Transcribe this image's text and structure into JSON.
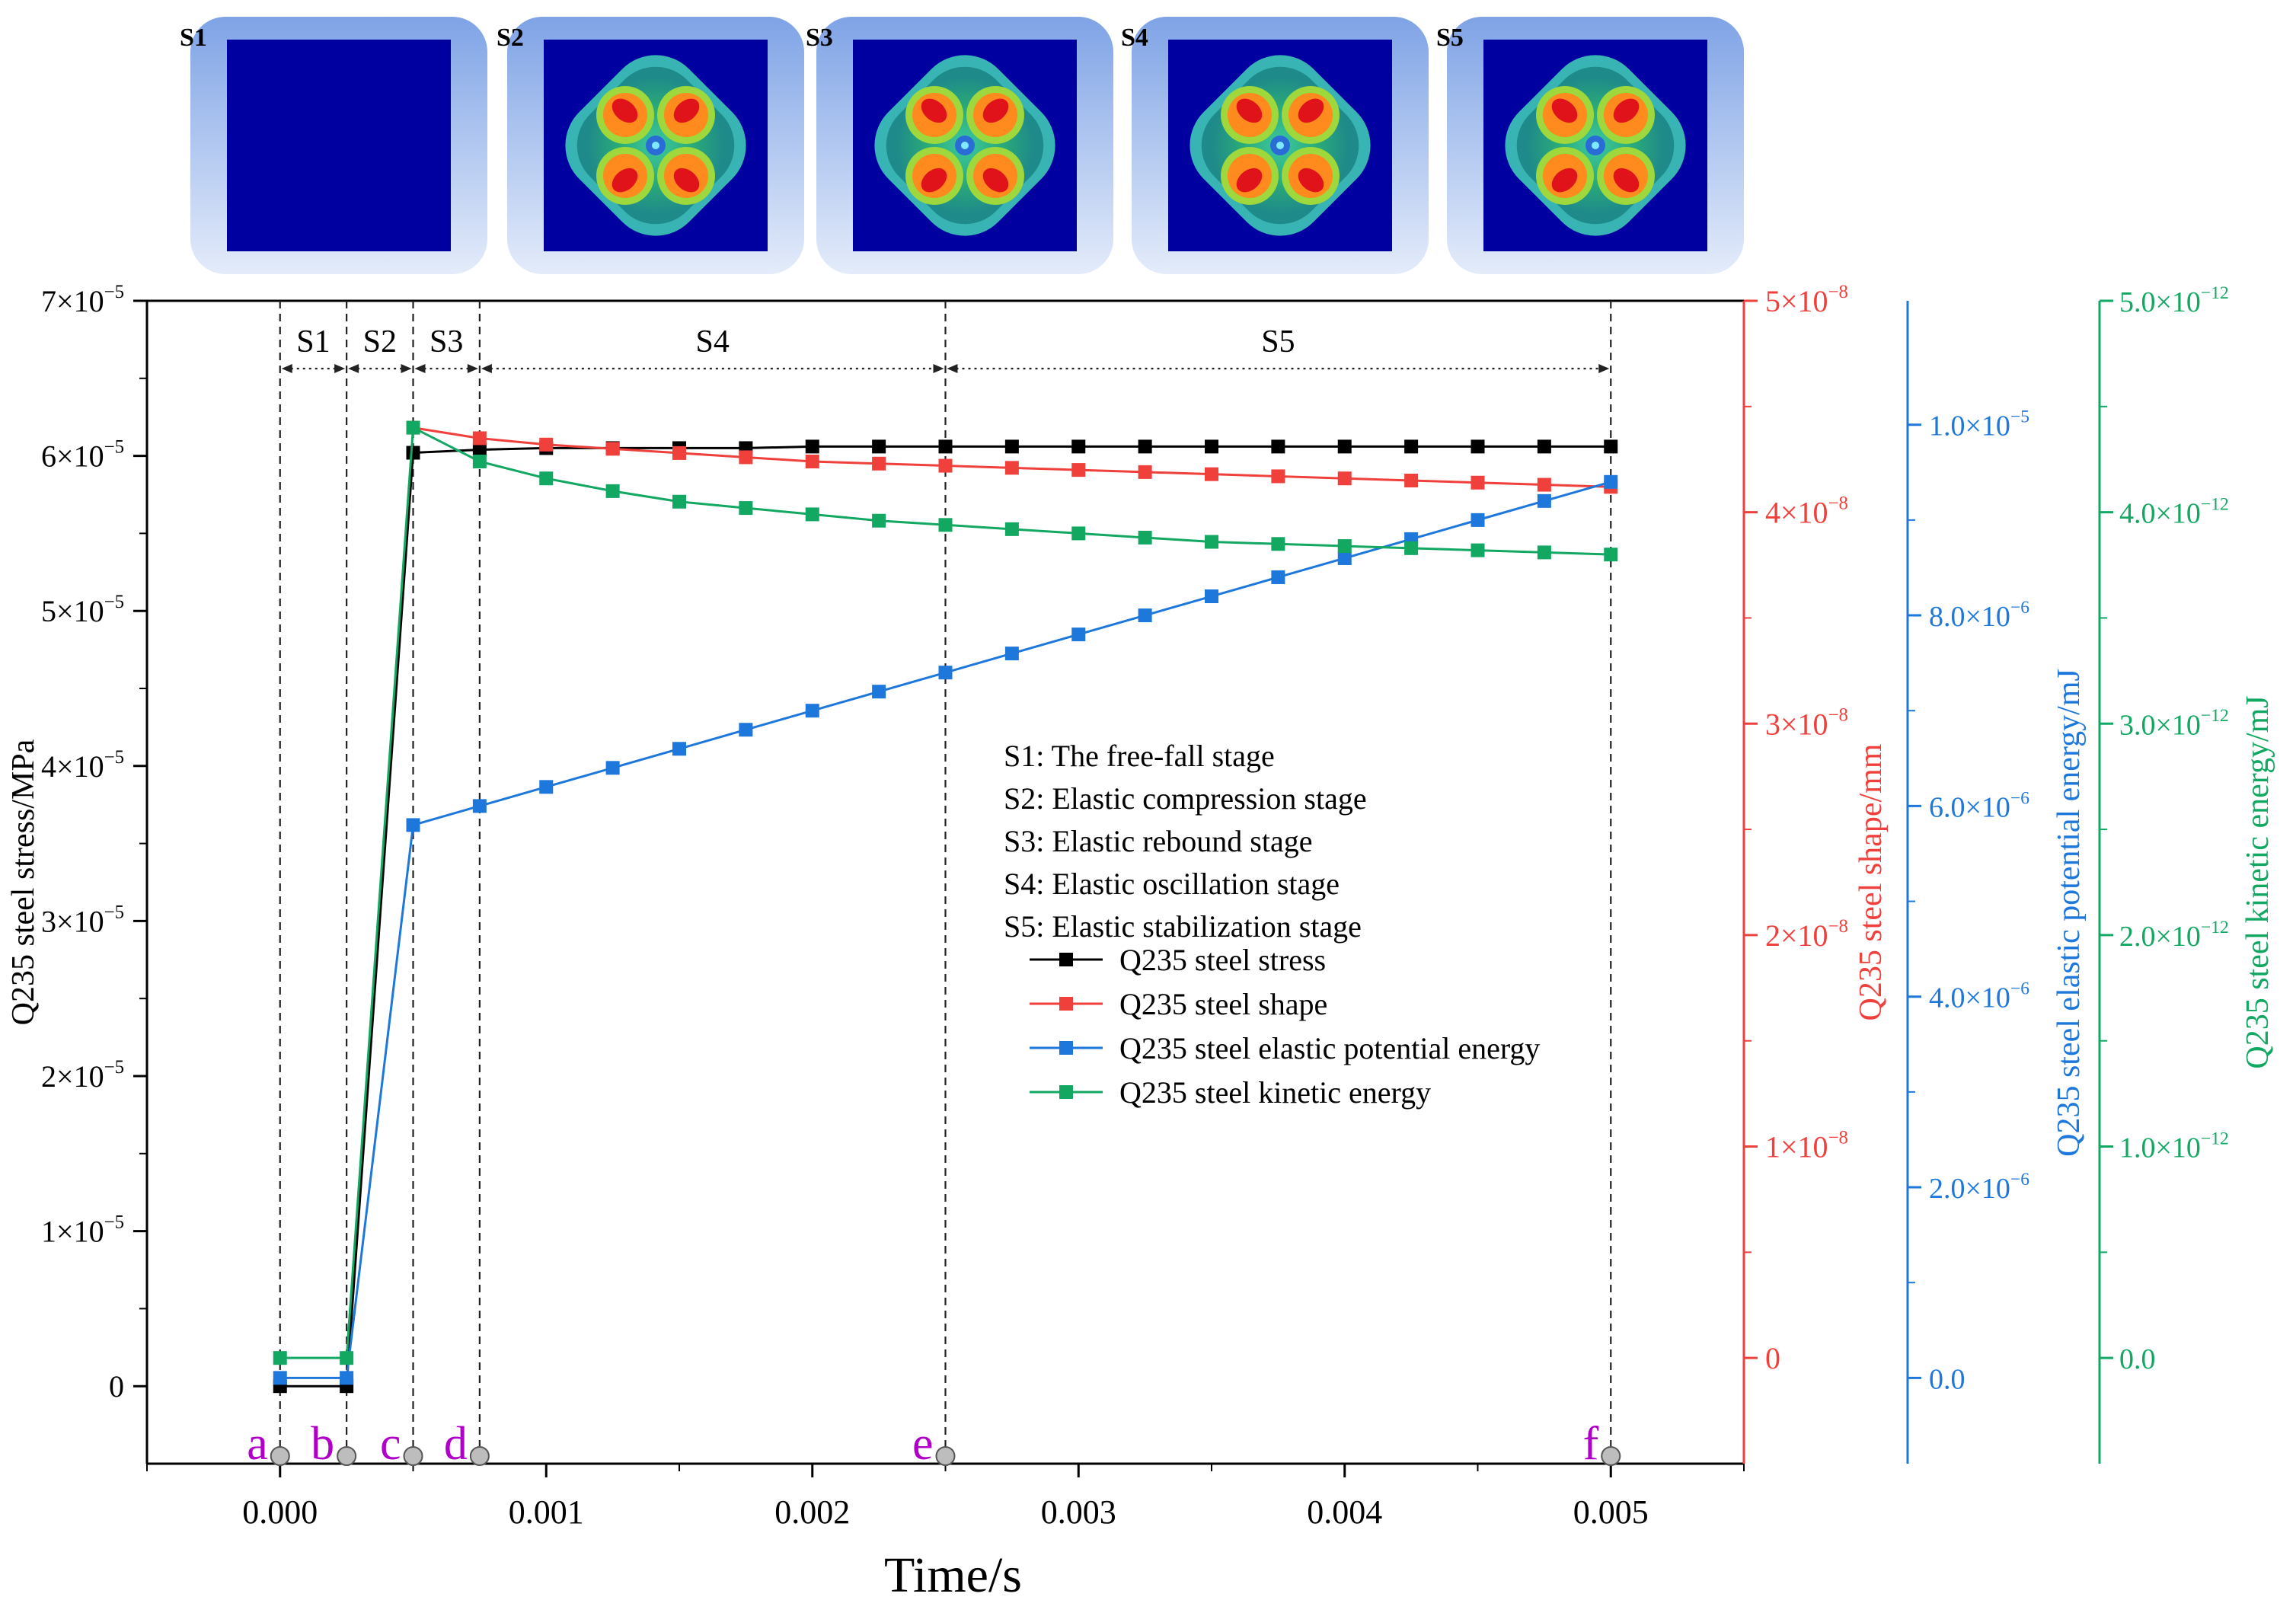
{
  "insets": [
    {
      "label": "S1",
      "pattern": "blank"
    },
    {
      "label": "S2",
      "pattern": "flower"
    },
    {
      "label": "S3",
      "pattern": "flower"
    },
    {
      "label": "S4",
      "pattern": "flower"
    },
    {
      "label": "S5",
      "pattern": "flower"
    }
  ],
  "colors": {
    "stress": "#000000",
    "shape": "#f0403c",
    "elastic": "#1e78dc",
    "kinetic": "#12a862",
    "stage_labels": "#b000c8",
    "inset_field": "#0000a0",
    "inset_frame": "#8fb0ea"
  },
  "chart_data": {
    "type": "line",
    "xlabel": "Time/s",
    "xlim": [
      -0.0005,
      0.0055
    ],
    "x_ticks": [
      {
        "value": 0.0,
        "label": "0.000"
      },
      {
        "value": 0.001,
        "label": "0.001"
      },
      {
        "value": 0.002,
        "label": "0.002"
      },
      {
        "value": 0.003,
        "label": "0.003"
      },
      {
        "value": 0.004,
        "label": "0.004"
      },
      {
        "value": 0.005,
        "label": "0.005"
      }
    ],
    "axes": {
      "stress": {
        "label": "Q235 steel stress/MPa",
        "range": [
          -5e-06,
          7e-05
        ],
        "ticks": [
          {
            "value": 0,
            "mant": "0",
            "exp": ""
          },
          {
            "value": 1e-05,
            "mant": "1×10",
            "exp": "−5"
          },
          {
            "value": 2e-05,
            "mant": "2×10",
            "exp": "−5"
          },
          {
            "value": 3e-05,
            "mant": "3×10",
            "exp": "−5"
          },
          {
            "value": 4e-05,
            "mant": "4×10",
            "exp": "−5"
          },
          {
            "value": 5e-05,
            "mant": "5×10",
            "exp": "−5"
          },
          {
            "value": 6e-05,
            "mant": "6×10",
            "exp": "−5"
          },
          {
            "value": 7e-05,
            "mant": "7×10",
            "exp": "−5"
          }
        ]
      },
      "shape": {
        "label": "Q235 steel shape/mm",
        "range": [
          -5e-09,
          5e-08
        ],
        "ticks": [
          {
            "value": 0,
            "mant": "0",
            "exp": ""
          },
          {
            "value": 1e-08,
            "mant": "1×10",
            "exp": "−8"
          },
          {
            "value": 2e-08,
            "mant": "2×10",
            "exp": "−8"
          },
          {
            "value": 3e-08,
            "mant": "3×10",
            "exp": "−8"
          },
          {
            "value": 4e-08,
            "mant": "4×10",
            "exp": "−8"
          },
          {
            "value": 5e-08,
            "mant": "5×10",
            "exp": "−8"
          }
        ]
      },
      "elastic": {
        "label": "Q235 steel elastic potential energy/mJ",
        "range": [
          -9e-07,
          1.13e-05
        ],
        "ticks": [
          {
            "value": 0,
            "mant": "0.0",
            "exp": ""
          },
          {
            "value": 2e-06,
            "mant": "2.0×10",
            "exp": "−6"
          },
          {
            "value": 4e-06,
            "mant": "4.0×10",
            "exp": "−6"
          },
          {
            "value": 6e-06,
            "mant": "6.0×10",
            "exp": "−6"
          },
          {
            "value": 8e-06,
            "mant": "8.0×10",
            "exp": "−6"
          },
          {
            "value": 1e-05,
            "mant": "1.0×10",
            "exp": "−5"
          }
        ]
      },
      "kinetic": {
        "label": "Q235 steel kinetic energy/mJ",
        "range": [
          -5e-13,
          5e-12
        ],
        "ticks": [
          {
            "value": 0,
            "mant": "0.0",
            "exp": ""
          },
          {
            "value": 1e-12,
            "mant": "1.0×10",
            "exp": "−12"
          },
          {
            "value": 2e-12,
            "mant": "2.0×10",
            "exp": "−12"
          },
          {
            "value": 3e-12,
            "mant": "3.0×10",
            "exp": "−12"
          },
          {
            "value": 4e-12,
            "mant": "4.0×10",
            "exp": "−12"
          },
          {
            "value": 5e-12,
            "mant": "5.0×10",
            "exp": "−12"
          }
        ]
      }
    },
    "series": [
      {
        "key": "stress",
        "name": "Q235 steel stress",
        "points": [
          [
            0,
            0
          ],
          [
            0.00025,
            0
          ],
          [
            0.0005,
            6.02e-05
          ],
          [
            0.00075,
            6.04e-05
          ],
          [
            0.001,
            6.05e-05
          ],
          [
            0.00125,
            6.05e-05
          ],
          [
            0.0015,
            6.05e-05
          ],
          [
            0.00175,
            6.05e-05
          ],
          [
            0.002,
            6.06e-05
          ],
          [
            0.00225,
            6.06e-05
          ],
          [
            0.0025,
            6.06e-05
          ],
          [
            0.00275,
            6.06e-05
          ],
          [
            0.003,
            6.06e-05
          ],
          [
            0.00325,
            6.06e-05
          ],
          [
            0.0035,
            6.06e-05
          ],
          [
            0.00375,
            6.06e-05
          ],
          [
            0.004,
            6.06e-05
          ],
          [
            0.00425,
            6.06e-05
          ],
          [
            0.0045,
            6.06e-05
          ],
          [
            0.00475,
            6.06e-05
          ],
          [
            0.005,
            6.06e-05
          ]
        ]
      },
      {
        "key": "shape",
        "name": "Q235 steel shape",
        "points": [
          [
            0.0005,
            4.4e-08
          ],
          [
            0.00075,
            4.35e-08
          ],
          [
            0.001,
            4.32e-08
          ],
          [
            0.00125,
            4.3e-08
          ],
          [
            0.0015,
            4.28e-08
          ],
          [
            0.00175,
            4.26e-08
          ],
          [
            0.002,
            4.24e-08
          ],
          [
            0.00225,
            4.23e-08
          ],
          [
            0.0025,
            4.22e-08
          ],
          [
            0.00275,
            4.21e-08
          ],
          [
            0.003,
            4.2e-08
          ],
          [
            0.00325,
            4.19e-08
          ],
          [
            0.0035,
            4.18e-08
          ],
          [
            0.00375,
            4.17e-08
          ],
          [
            0.004,
            4.16e-08
          ],
          [
            0.00425,
            4.15e-08
          ],
          [
            0.0045,
            4.14e-08
          ],
          [
            0.00475,
            4.13e-08
          ],
          [
            0.005,
            4.12e-08
          ]
        ]
      },
      {
        "key": "elastic",
        "name": "Q235 steel elastic potential energy",
        "points": [
          [
            0,
            0
          ],
          [
            0.00025,
            0
          ],
          [
            0.0005,
            5.8e-06
          ],
          [
            0.00075,
            6e-06
          ],
          [
            0.001,
            6.2e-06
          ],
          [
            0.00125,
            6.4e-06
          ],
          [
            0.0015,
            6.6e-06
          ],
          [
            0.00175,
            6.8e-06
          ],
          [
            0.002,
            7e-06
          ],
          [
            0.00225,
            7.2e-06
          ],
          [
            0.0025,
            7.4e-06
          ],
          [
            0.00275,
            7.6e-06
          ],
          [
            0.003,
            7.8e-06
          ],
          [
            0.00325,
            8e-06
          ],
          [
            0.0035,
            8.2e-06
          ],
          [
            0.00375,
            8.4e-06
          ],
          [
            0.004,
            8.6e-06
          ],
          [
            0.00425,
            8.8e-06
          ],
          [
            0.0045,
            9e-06
          ],
          [
            0.00475,
            9.2e-06
          ],
          [
            0.005,
            9.4e-06
          ]
        ]
      },
      {
        "key": "kinetic",
        "name": "Q235 steel kinetic energy",
        "points": [
          [
            0,
            0
          ],
          [
            0.00025,
            0
          ],
          [
            0.0005,
            4.4e-12
          ],
          [
            0.00075,
            4.24e-12
          ],
          [
            0.001,
            4.16e-12
          ],
          [
            0.00125,
            4.1e-12
          ],
          [
            0.0015,
            4.05e-12
          ],
          [
            0.00175,
            4.02e-12
          ],
          [
            0.002,
            3.99e-12
          ],
          [
            0.00225,
            3.96e-12
          ],
          [
            0.0025,
            3.94e-12
          ],
          [
            0.00275,
            3.92e-12
          ],
          [
            0.003,
            3.9e-12
          ],
          [
            0.00325,
            3.88e-12
          ],
          [
            0.0035,
            3.86e-12
          ],
          [
            0.00375,
            3.85e-12
          ],
          [
            0.004,
            3.84e-12
          ],
          [
            0.00425,
            3.83e-12
          ],
          [
            0.0045,
            3.82e-12
          ],
          [
            0.00475,
            3.81e-12
          ],
          [
            0.005,
            3.8e-12
          ]
        ]
      }
    ],
    "stage_lines": [
      0,
      0.00025,
      0.0005,
      0.00075,
      0.0025,
      0.005
    ],
    "stages": [
      {
        "label": "S1",
        "from": 0,
        "to": 0.00025
      },
      {
        "label": "S2",
        "from": 0.00025,
        "to": 0.0005
      },
      {
        "label": "S3",
        "from": 0.0005,
        "to": 0.00075
      },
      {
        "label": "S4",
        "from": 0.00075,
        "to": 0.0025
      },
      {
        "label": "S5",
        "from": 0.0025,
        "to": 0.005
      }
    ],
    "marker_points": [
      {
        "label": "a",
        "x": 0
      },
      {
        "label": "b",
        "x": 0.00025
      },
      {
        "label": "c",
        "x": 0.0005
      },
      {
        "label": "d",
        "x": 0.00075
      },
      {
        "label": "e",
        "x": 0.0025
      },
      {
        "label": "f",
        "x": 0.005
      }
    ],
    "stage_notes": [
      "S1: The free-fall stage",
      "S2: Elastic compression stage",
      "S3: Elastic rebound stage",
      "S4: Elastic oscillation stage",
      "S5: Elastic stabilization stage"
    ],
    "legend": [
      {
        "key": "stress",
        "label": "Q235 steel stress"
      },
      {
        "key": "shape",
        "label": "Q235 steel shape"
      },
      {
        "key": "elastic",
        "label": "Q235 steel elastic potential energy"
      },
      {
        "key": "kinetic",
        "label": "Q235 steel kinetic energy"
      }
    ]
  }
}
